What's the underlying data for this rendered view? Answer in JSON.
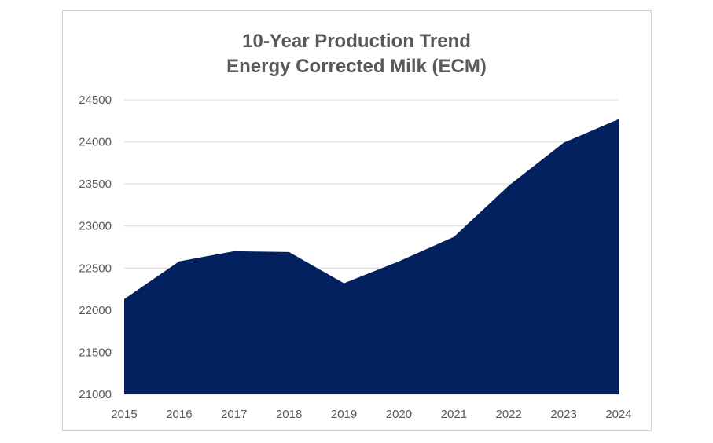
{
  "chart_data": {
    "type": "area",
    "title": "10-Year Production Trend",
    "subtitle": "Energy Corrected Milk (ECM)",
    "x": [
      "2015",
      "2016",
      "2017",
      "2018",
      "2019",
      "2020",
      "2021",
      "2022",
      "2023",
      "2024"
    ],
    "series": [
      {
        "values": [
          22130,
          22580,
          22700,
          22690,
          22320,
          22580,
          22870,
          23480,
          23990,
          24270
        ]
      }
    ],
    "ylim": [
      21000,
      24500
    ],
    "yticks": [
      "21000",
      "21500",
      "22000",
      "22500",
      "23000",
      "23500",
      "24000",
      "24500"
    ],
    "grid": true,
    "legend": "none",
    "colors": {
      "fill": "#03215f",
      "grid": "#d9d9d9",
      "text": "#595959"
    }
  }
}
